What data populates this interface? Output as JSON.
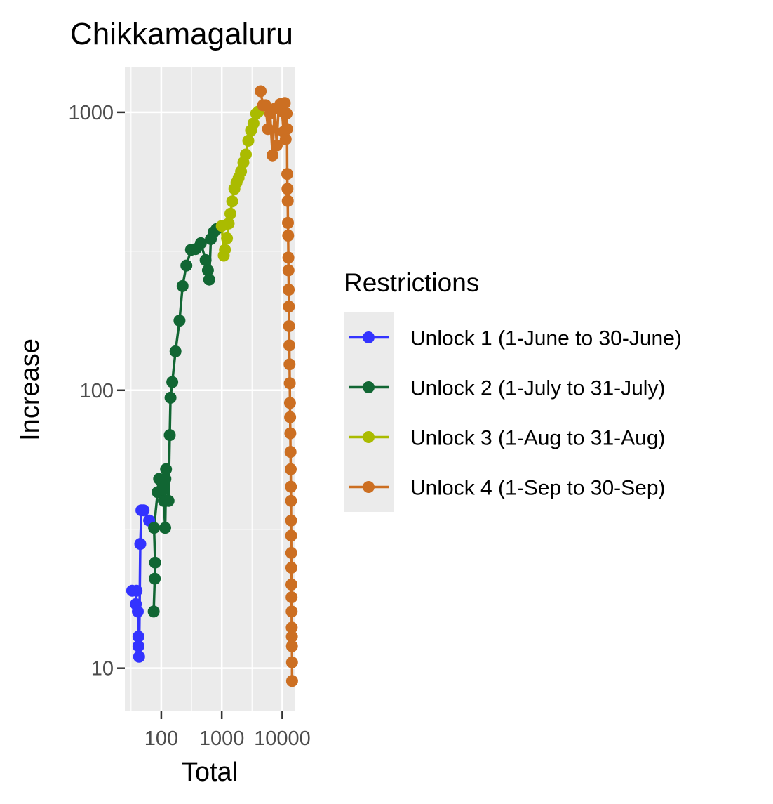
{
  "chart_data": {
    "type": "line",
    "title": "Chikkamagaluru",
    "xlabel": "Total",
    "ylabel": "Increase",
    "x_scale": "log10",
    "y_scale": "log10",
    "xlim": [
      25,
      16000
    ],
    "ylim": [
      7,
      1450
    ],
    "x_ticks": [
      100,
      1000,
      10000
    ],
    "x_tick_labels": [
      "100",
      "1000",
      "10000"
    ],
    "y_ticks": [
      10,
      100,
      1000
    ],
    "y_tick_labels": [
      "10",
      "100",
      "1000"
    ],
    "grid": true,
    "legend_title": "Restrictions",
    "legend_position": "right",
    "series": [
      {
        "name": "Unlock 1 (1-June to 30-June)",
        "color": "#3333ff",
        "points": [
          [
            33,
            19
          ],
          [
            39,
            19
          ],
          [
            38,
            17
          ],
          [
            41,
            16
          ],
          [
            42,
            13
          ],
          [
            42,
            12
          ],
          [
            43,
            11
          ],
          [
            45,
            28
          ],
          [
            47,
            37
          ],
          [
            51,
            37
          ],
          [
            63,
            34
          ]
        ]
      },
      {
        "name": "Unlock 2 (1-July to 31-July)",
        "color": "#116633",
        "points": [
          [
            75,
            16
          ],
          [
            78,
            21
          ],
          [
            79,
            24
          ],
          [
            76,
            32
          ],
          [
            87,
            43
          ],
          [
            92,
            48
          ],
          [
            100,
            47
          ],
          [
            104,
            44
          ],
          [
            110,
            40
          ],
          [
            116,
            32
          ],
          [
            118,
            40
          ],
          [
            117,
            48
          ],
          [
            120,
            52
          ],
          [
            132,
            40
          ],
          [
            138,
            69
          ],
          [
            142,
            94
          ],
          [
            152,
            107
          ],
          [
            172,
            138
          ],
          [
            200,
            178
          ],
          [
            225,
            237
          ],
          [
            260,
            281
          ],
          [
            310,
            320
          ],
          [
            370,
            322
          ],
          [
            450,
            338
          ],
          [
            540,
            294
          ],
          [
            590,
            270
          ],
          [
            620,
            250
          ],
          [
            660,
            350
          ],
          [
            730,
            370
          ],
          [
            820,
            380
          ]
        ]
      },
      {
        "name": "Unlock 3 (1-Aug to 31-Aug)",
        "color": "#aabb00",
        "points": [
          [
            1000,
            390
          ],
          [
            1080,
            305
          ],
          [
            1130,
            320
          ],
          [
            1220,
            352
          ],
          [
            1300,
            398
          ],
          [
            1390,
            432
          ],
          [
            1490,
            478
          ],
          [
            1620,
            530
          ],
          [
            1750,
            558
          ],
          [
            1900,
            581
          ],
          [
            2080,
            612
          ],
          [
            2280,
            660
          ],
          [
            2500,
            705
          ],
          [
            2750,
            790
          ],
          [
            3050,
            860
          ],
          [
            3350,
            912
          ],
          [
            3700,
            990
          ],
          [
            4050,
            1006
          ]
        ]
      },
      {
        "name": "Unlock 4 (1-Sep to 30-Sep)",
        "color": "#cc6f22",
        "points": [
          [
            4400,
            1190
          ],
          [
            4800,
            1060
          ],
          [
            5300,
            1060
          ],
          [
            5800,
            870
          ],
          [
            6300,
            990
          ],
          [
            6900,
            700
          ],
          [
            7500,
            1030
          ],
          [
            8100,
            760
          ],
          [
            8700,
            1040
          ],
          [
            9300,
            1070
          ],
          [
            9900,
            1010
          ],
          [
            10500,
            850
          ],
          [
            11000,
            1080
          ],
          [
            11400,
            800
          ],
          [
            11800,
            990
          ],
          [
            12000,
            870
          ],
          [
            12100,
            600
          ],
          [
            12200,
            530
          ],
          [
            12300,
            480
          ],
          [
            12400,
            400
          ],
          [
            12500,
            360
          ],
          [
            12600,
            300
          ],
          [
            12700,
            270
          ],
          [
            12800,
            230
          ],
          [
            12900,
            200
          ],
          [
            13000,
            170
          ],
          [
            13100,
            145
          ],
          [
            13200,
            124
          ],
          [
            13300,
            106
          ],
          [
            13400,
            90
          ],
          [
            13500,
            80
          ],
          [
            13600,
            70
          ],
          [
            13700,
            60
          ],
          [
            13800,
            52
          ],
          [
            13900,
            45
          ],
          [
            13950,
            40
          ],
          [
            14000,
            34
          ],
          [
            14050,
            30
          ],
          [
            14100,
            26
          ],
          [
            14150,
            23
          ],
          [
            14200,
            20
          ],
          [
            14250,
            18
          ],
          [
            14300,
            16
          ],
          [
            14350,
            14
          ],
          [
            14400,
            13
          ],
          [
            14450,
            12
          ],
          [
            14500,
            10.5
          ],
          [
            14550,
            9
          ]
        ]
      }
    ]
  }
}
